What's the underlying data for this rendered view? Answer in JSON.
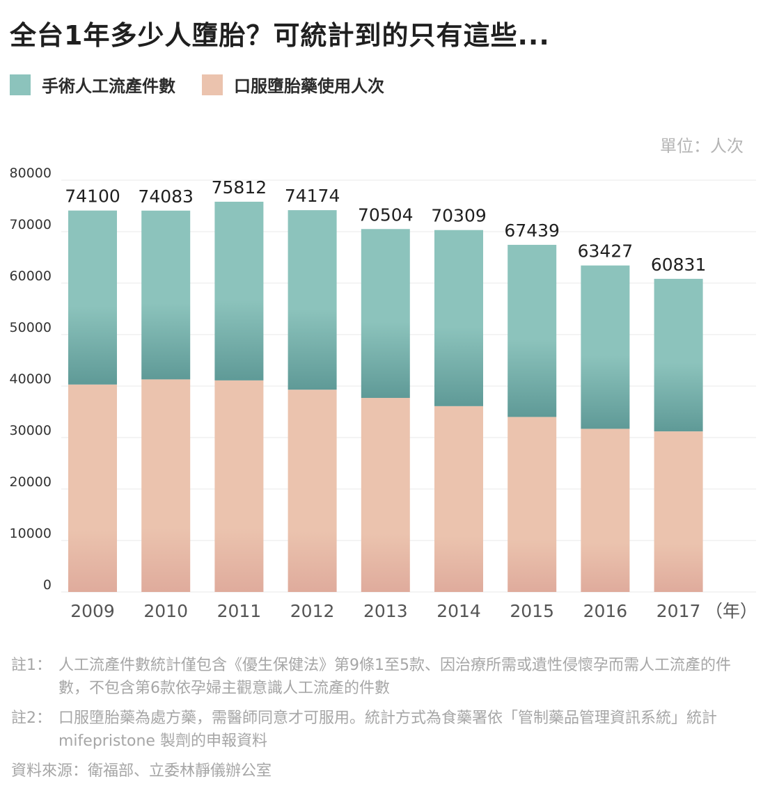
{
  "title": "全台1年多少人墮胎？可統計到的只有這些...",
  "legend": [
    {
      "label": "手術人工流產件數",
      "color": "#8cc3bc"
    },
    {
      "label": "口服墮胎藥使用人次",
      "color": "#ebc3ae"
    }
  ],
  "unit_label": "單位：人次",
  "chart_data": {
    "type": "bar",
    "stacked": true,
    "categories": [
      "2009",
      "2010",
      "2011",
      "2012",
      "2013",
      "2014",
      "2015",
      "2016",
      "2017"
    ],
    "x_unit_label": "（年）",
    "ylim": [
      0,
      80000
    ],
    "y_ticks": [
      0,
      10000,
      20000,
      30000,
      40000,
      50000,
      60000,
      70000,
      80000
    ],
    "grid": true,
    "series": [
      {
        "name": "口服墮胎藥使用人次",
        "color": "#ebc3ae",
        "values": [
          40300,
          41300,
          41100,
          39300,
          37700,
          36100,
          34000,
          31700,
          31200
        ]
      },
      {
        "name": "手術人工流產件數",
        "color": "#8cc3bc",
        "values": [
          33800,
          32783,
          34712,
          34874,
          32804,
          34209,
          33439,
          31727,
          29631
        ]
      }
    ],
    "total_labels": [
      "74100",
      "74083",
      "75812",
      "74174",
      "70504",
      "70309",
      "67439",
      "63427",
      "60831"
    ]
  },
  "notes": [
    {
      "label": "註1：",
      "text": "人工流產件數統計僅包含《優生保健法》第9條1至5款、因治療所需或遺性侵懷孕而需人工流產的件數，不包含第6款依孕婦主觀意識人工流產的件數"
    },
    {
      "label": "註2：",
      "text": "口服墮胎藥為處方藥，需醫師同意才可服用。統計方式為食藥署依「管制藥品管理資訊系統」統計 mifepristone 製劑的申報資料"
    }
  ],
  "source": "資料來源：衛福部、立委林靜儀辦公室"
}
